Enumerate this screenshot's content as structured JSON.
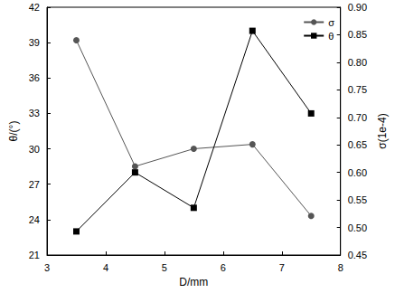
{
  "chart_data": {
    "type": "line",
    "x_label": "D/mm",
    "y_label": "θ/(°)",
    "y2_label": "σ(1e-4)",
    "xlim": [
      3,
      8
    ],
    "xticks": [
      3,
      4,
      5,
      6,
      7,
      8
    ],
    "ylim": [
      21,
      42
    ],
    "yticks": [
      21,
      24,
      27,
      30,
      33,
      36,
      39,
      42
    ],
    "y2lim": [
      0.45,
      0.9
    ],
    "y2ticks": [
      0.45,
      {
        "value": 0.5,
        "label": "0.50"
      },
      0.55,
      {
        "value": 0.6,
        "label": "0.60"
      },
      0.65,
      {
        "value": 0.7,
        "label": "0.70"
      },
      0.75,
      {
        "value": 0.8,
        "label": "0.80"
      },
      0.85,
      {
        "value": 0.9,
        "label": "0.90"
      }
    ],
    "legend": "upper right",
    "grid": false,
    "series": [
      {
        "name": "σ",
        "color": "#555555",
        "marker": "circle",
        "line_style": "solid",
        "axis": "y2",
        "x": [
          3.5,
          4.5,
          5.5,
          6.5,
          7.5
        ],
        "values": [
          0.84,
          0.611,
          0.643,
          0.651,
          0.521
        ]
      },
      {
        "name": "θ",
        "color": "#000000",
        "marker": "square",
        "line_style": "solid",
        "axis": "y",
        "x": [
          3.5,
          4.5,
          5.5,
          6.5,
          7.5
        ],
        "values": [
          23,
          28,
          25,
          40,
          33
        ]
      }
    ]
  }
}
